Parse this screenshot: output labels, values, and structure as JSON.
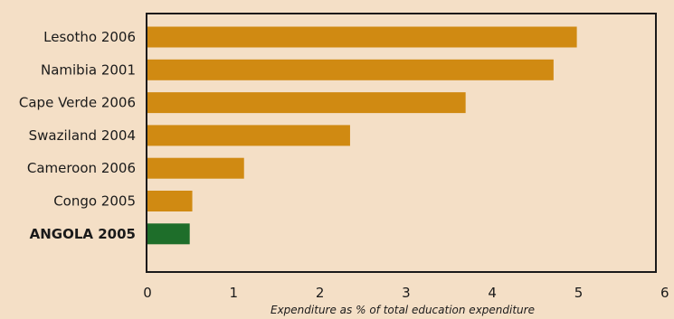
{
  "chart_data": {
    "type": "bar",
    "orientation": "horizontal",
    "categories": [
      "Lesotho 2006",
      "Namibia 2001",
      "Cape Verde 2006",
      "Swaziland 2004",
      "Cameroon 2006",
      "Congo 2005",
      "ANGOLA 2005"
    ],
    "values": [
      4.98,
      4.71,
      3.69,
      2.35,
      1.12,
      0.52,
      0.49
    ],
    "highlight_index": 6,
    "xlabel": "Expenditure as % of total education expenditure",
    "xlim": [
      0,
      6
    ],
    "xticks": [
      "0",
      "1",
      "2",
      "3",
      "4",
      "5",
      "6"
    ],
    "grid": false,
    "colors": {
      "background": "#f4dfc6",
      "bar": "#d08a12",
      "highlight_bar": "#1e6e2a",
      "highlight_label": "#1e7a23",
      "frame": "#1a1a1a"
    }
  }
}
